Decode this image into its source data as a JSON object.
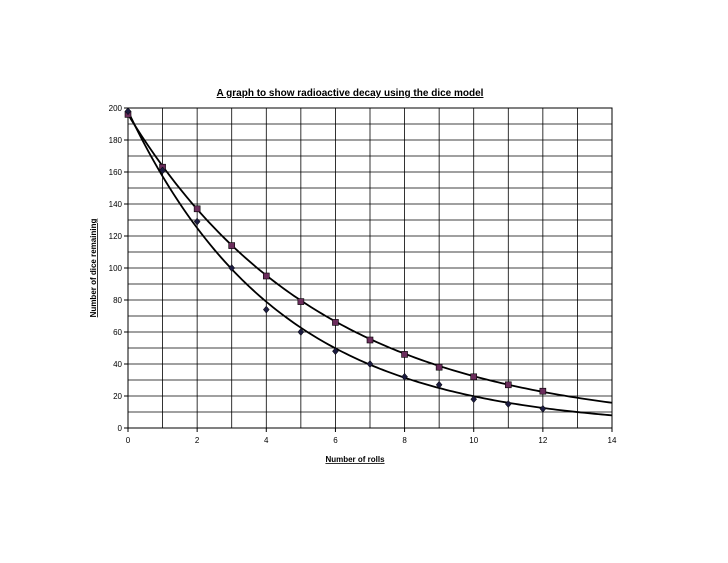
{
  "chart_data": {
    "type": "scatter",
    "title": "A graph to show radioactive decay using the dice model",
    "xlabel": "Number of rolls",
    "ylabel": "Number of dice remaining",
    "xlim": [
      0,
      14
    ],
    "ylim": [
      0,
      200
    ],
    "x_ticks": [
      0,
      2,
      4,
      6,
      8,
      10,
      12,
      14
    ],
    "y_ticks": [
      0,
      20,
      40,
      60,
      80,
      100,
      120,
      140,
      160,
      180,
      200
    ],
    "grid": true,
    "series": [
      {
        "marker": "square",
        "color": "#6b2d5c",
        "x": [
          0,
          1,
          2,
          3,
          4,
          5,
          6,
          7,
          8,
          9,
          10,
          11,
          12
        ],
        "y": [
          196,
          163,
          137,
          114,
          95,
          79,
          66,
          55,
          46,
          38,
          32,
          27,
          23
        ],
        "trendline": {
          "type": "exponential",
          "a": 196,
          "k": 0.18
        }
      },
      {
        "marker": "diamond",
        "color": "#1c1c40",
        "x": [
          0,
          1,
          2,
          3,
          4,
          5,
          6,
          7,
          8,
          9,
          10,
          11,
          12
        ],
        "y": [
          198,
          161,
          129,
          100,
          74,
          60,
          48,
          40,
          32,
          27,
          18,
          15,
          12
        ],
        "trendline": {
          "type": "exponential",
          "a": 198,
          "k": 0.23
        }
      }
    ]
  }
}
